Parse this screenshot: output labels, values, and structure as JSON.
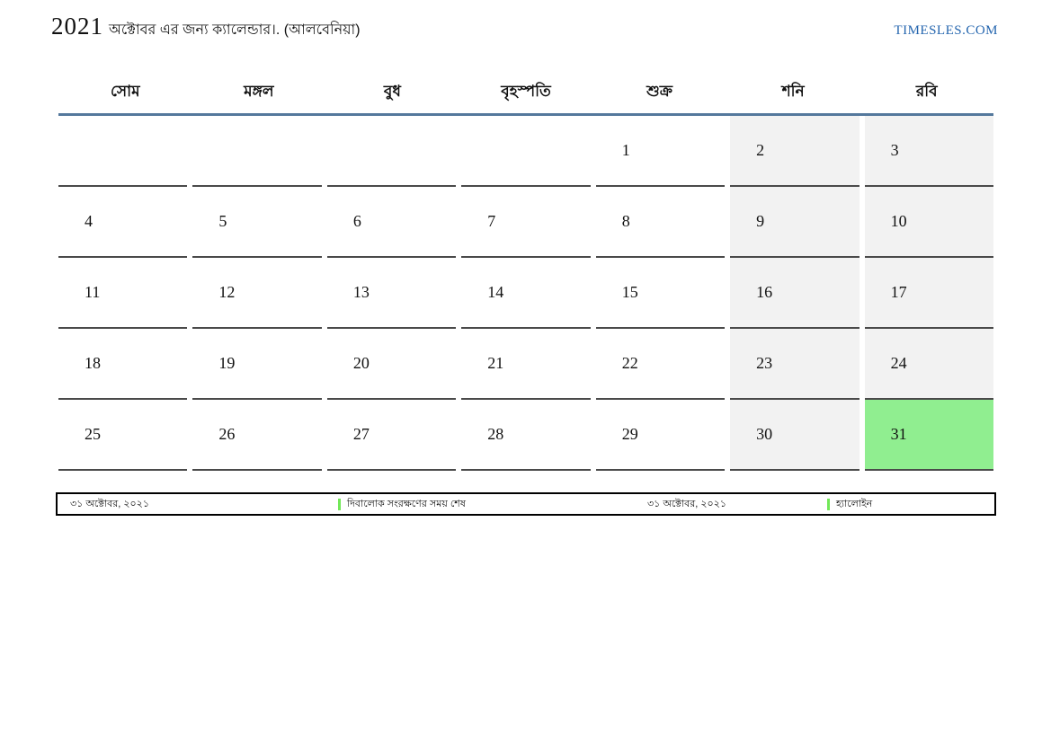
{
  "header": {
    "title_year": "2021",
    "title_rest": "অক্টোবর এর জন্য ক্যালেন্ডার।. (আলবেনিয়া)",
    "site": "TIMESLES.COM"
  },
  "calendar": {
    "weekday_headers": [
      "সোম",
      "মঙ্গল",
      "বুধ",
      "বৃহস্পতি",
      "শুক্র",
      "শনি",
      "রবি"
    ],
    "weeks": [
      [
        "",
        "",
        "",
        "",
        "1",
        "2",
        "3"
      ],
      [
        "4",
        "5",
        "6",
        "7",
        "8",
        "9",
        "10"
      ],
      [
        "11",
        "12",
        "13",
        "14",
        "15",
        "16",
        "17"
      ],
      [
        "18",
        "19",
        "20",
        "21",
        "22",
        "23",
        "24"
      ],
      [
        "25",
        "26",
        "27",
        "28",
        "29",
        "30",
        "31"
      ]
    ],
    "weekend_columns": [
      5,
      6
    ],
    "highlighted_day": "31",
    "colors": {
      "header_line": "#54789c",
      "weekend_bg": "#f2f2f2",
      "highlight_bg": "#90ee90",
      "cell_border": "#4a4a4a",
      "site_link": "#2566af",
      "legend_marker": "#72e858"
    }
  },
  "legend": {
    "items": [
      {
        "date": "৩১ অক্টোবর, ২০২১",
        "event": "দিবালোক সংরক্ষণের সময় শেষ"
      },
      {
        "date": "৩১ অক্টোবর, ২০২১",
        "event": "হ্যালোইন"
      }
    ]
  }
}
